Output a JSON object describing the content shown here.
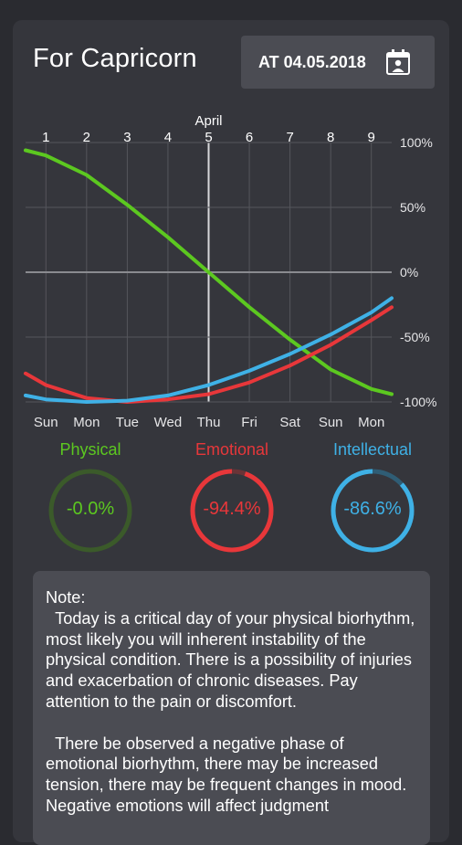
{
  "header": {
    "title": "For Capricorn",
    "date_button_label": "AT 04.05.2018",
    "calendar_icon": "calendar-icon"
  },
  "chart_data": {
    "type": "line",
    "month_label": "April",
    "top_ticks": [
      "1",
      "2",
      "3",
      "4",
      "5",
      "6",
      "7",
      "8",
      "9"
    ],
    "day_labels": [
      "Sun",
      "Mon",
      "Tue",
      "Wed",
      "Thu",
      "Fri",
      "Sat",
      "Sun",
      "Mon"
    ],
    "y_tick_labels": [
      "100%",
      "50%",
      "0%",
      "-50%",
      "-100%"
    ],
    "ylim": [
      -100,
      100
    ],
    "x": [
      0.5,
      1,
      2,
      3,
      4,
      5,
      6,
      7,
      8,
      9,
      9.5
    ],
    "current_day": 5,
    "series": [
      {
        "name": "Physical",
        "color": "#5cc820",
        "values": [
          94,
          90,
          75,
          52,
          27,
          0,
          -27,
          -52,
          -75,
          -90,
          -94
        ]
      },
      {
        "name": "Emotional",
        "color": "#e8373a",
        "values": [
          -78,
          -87,
          -97,
          -100,
          -98,
          -94,
          -85,
          -72,
          -56,
          -37,
          -27
        ]
      },
      {
        "name": "Intellectual",
        "color": "#3fb1e6",
        "values": [
          -95,
          -98,
          -100,
          -99,
          -95,
          -87,
          -76,
          -63,
          -48,
          -31,
          -20
        ]
      }
    ]
  },
  "rings": [
    {
      "label": "Physical",
      "value": "-0.0%",
      "color": "#5cc820",
      "track": "#3b5a2a",
      "fraction": 0.0
    },
    {
      "label": "Emotional",
      "value": "-94.4%",
      "color": "#e8373a",
      "track": "#6a3437",
      "fraction": 0.944
    },
    {
      "label": "Intellectual",
      "value": "-86.6%",
      "color": "#3fb1e6",
      "track": "#2f5d75",
      "fraction": 0.866
    }
  ],
  "note": {
    "text": "Note:\n  Today is a critical day of your physical biorhythm, most likely you will inherent instability of the physical condition. There is a possibility of injuries and exacerbation of chronic diseases. Pay attention to the pain or discomfort.\n\n  There be observed a negative phase of emotional biorhythm, there may be increased tension, there may be frequent changes in mood. Negative emotions will affect judgment"
  }
}
